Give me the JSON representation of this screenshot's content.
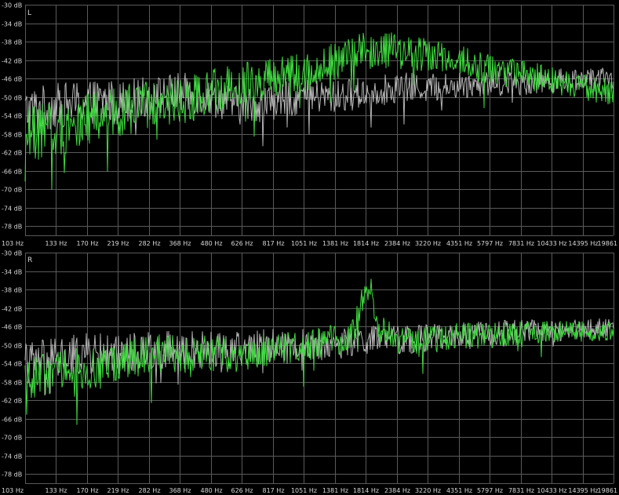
{
  "chart_data": [
    {
      "type": "line",
      "channel_label": "L",
      "x_labels": [
        "103 Hz",
        "133 Hz",
        "170 Hz",
        "219 Hz",
        "282 Hz",
        "368 Hz",
        "480 Hz",
        "626 Hz",
        "817 Hz",
        "1051 Hz",
        "1381 Hz",
        "1814 Hz",
        "2384 Hz",
        "3220 Hz",
        "4351 Hz",
        "5797 Hz",
        "7831 Hz",
        "10433 Hz",
        "14395 Hz",
        "19861"
      ],
      "y_labels": [
        "-30 dB",
        "-34 dB",
        "-38 dB",
        "-42 dB",
        "-46 dB",
        "-50 dB",
        "-54 dB",
        "-58 dB",
        "-62 dB",
        "-66 dB",
        "-70 dB",
        "-74 dB",
        "-78 dB"
      ],
      "ylim": [
        -80,
        -30
      ],
      "grid": true,
      "series": [
        {
          "color": "#b4b4b4",
          "anchors": [
            [
              103,
              -53
            ],
            [
              133,
              -52
            ],
            [
              170,
              -51
            ],
            [
              219,
              -51
            ],
            [
              282,
              -50
            ],
            [
              368,
              -49
            ],
            [
              480,
              -50
            ],
            [
              626,
              -52
            ],
            [
              817,
              -51
            ],
            [
              1051,
              -50
            ],
            [
              1381,
              -50
            ],
            [
              1814,
              -49
            ],
            [
              2384,
              -48
            ],
            [
              3220,
              -48
            ],
            [
              4351,
              -47.5
            ],
            [
              5797,
              -47
            ],
            [
              7831,
              -47
            ],
            [
              10433,
              -46.5
            ],
            [
              14395,
              -46
            ],
            [
              19861,
              -46
            ]
          ],
          "noise": 3.2
        },
        {
          "color": "#3fdc3f",
          "anchors": [
            [
              103,
              -58
            ],
            [
              133,
              -57
            ],
            [
              170,
              -55
            ],
            [
              219,
              -53
            ],
            [
              282,
              -52
            ],
            [
              368,
              -51
            ],
            [
              480,
              -49
            ],
            [
              626,
              -47
            ],
            [
              817,
              -46
            ],
            [
              1051,
              -45
            ],
            [
              1381,
              -42
            ],
            [
              1814,
              -40
            ],
            [
              2384,
              -40
            ],
            [
              3220,
              -41
            ],
            [
              4351,
              -42
            ],
            [
              5797,
              -44
            ],
            [
              7831,
              -45
            ],
            [
              10433,
              -46.5
            ],
            [
              14395,
              -48
            ],
            [
              19861,
              -49
            ]
          ],
          "noise": 3.8
        }
      ]
    },
    {
      "type": "line",
      "channel_label": "R",
      "x_labels": [
        "103 Hz",
        "133 Hz",
        "170 Hz",
        "219 Hz",
        "282 Hz",
        "368 Hz",
        "480 Hz",
        "626 Hz",
        "817 Hz",
        "1051 Hz",
        "1381 Hz",
        "1814 Hz",
        "2384 Hz",
        "3220 Hz",
        "4351 Hz",
        "5797 Hz",
        "7831 Hz",
        "10433 Hz",
        "14395 Hz",
        "19861"
      ],
      "y_labels": [
        "-30 dB",
        "-34 dB",
        "-38 dB",
        "-42 dB",
        "-46 dB",
        "-50 dB",
        "-54 dB",
        "-58 dB",
        "-62 dB",
        "-66 dB",
        "-70 dB",
        "-74 dB",
        "-78 dB"
      ],
      "ylim": [
        -80,
        -30
      ],
      "grid": true,
      "series": [
        {
          "color": "#b4b4b4",
          "anchors": [
            [
              103,
              -54
            ],
            [
              133,
              -53
            ],
            [
              170,
              -52
            ],
            [
              219,
              -52
            ],
            [
              282,
              -51
            ],
            [
              368,
              -51
            ],
            [
              480,
              -51
            ],
            [
              626,
              -51
            ],
            [
              817,
              -50
            ],
            [
              1051,
              -50
            ],
            [
              1381,
              -50
            ],
            [
              1814,
              -49
            ],
            [
              2384,
              -49
            ],
            [
              3220,
              -48.5
            ],
            [
              4351,
              -48
            ],
            [
              5797,
              -47.5
            ],
            [
              7831,
              -47
            ],
            [
              10433,
              -47
            ],
            [
              14395,
              -46.5
            ],
            [
              19861,
              -46
            ]
          ],
          "noise": 3.0
        },
        {
          "color": "#3fdc3f",
          "anchors": [
            [
              103,
              -57
            ],
            [
              133,
              -56
            ],
            [
              170,
              -55
            ],
            [
              219,
              -54
            ],
            [
              282,
              -52
            ],
            [
              368,
              -52
            ],
            [
              480,
              -52
            ],
            [
              626,
              -52
            ],
            [
              817,
              -51
            ],
            [
              1051,
              -50
            ],
            [
              1381,
              -49
            ],
            [
              1600,
              -48
            ],
            [
              1814,
              -38
            ],
            [
              1900,
              -37
            ],
            [
              2000,
              -46
            ],
            [
              2384,
              -49
            ],
            [
              3220,
              -49
            ],
            [
              4351,
              -48
            ],
            [
              5797,
              -48
            ],
            [
              7831,
              -47.5
            ],
            [
              10433,
              -47
            ],
            [
              14395,
              -47
            ],
            [
              19861,
              -47
            ]
          ],
          "noise": 3.0
        }
      ]
    }
  ]
}
